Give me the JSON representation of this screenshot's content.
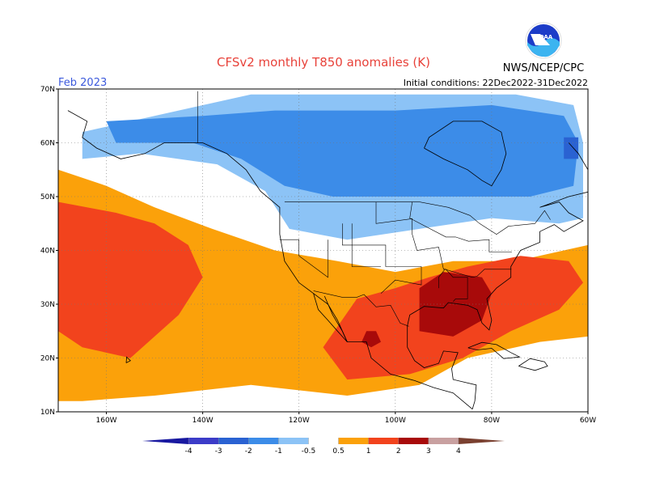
{
  "header": {
    "title": "CFSv2 monthly T850 anomalies (K)",
    "valid_month": "Feb 2023",
    "agency": "NWS/NCEP/CPC",
    "initial_conditions": "Initial conditions: 22Dec2022-31Dec2022",
    "logo_text": "NOAA",
    "title_color": "#e8423a",
    "month_color": "#3c5adc"
  },
  "map": {
    "domain": {
      "lon_min": -170,
      "lon_max": -60,
      "lat_min": 10,
      "lat_max": 70
    },
    "lat_ticks": [
      {
        "value": 70,
        "label": "70N"
      },
      {
        "value": 60,
        "label": "60N"
      },
      {
        "value": 50,
        "label": "50N"
      },
      {
        "value": 40,
        "label": "40N"
      },
      {
        "value": 30,
        "label": "30N"
      },
      {
        "value": 20,
        "label": "20N"
      },
      {
        "value": 10,
        "label": "10N"
      }
    ],
    "lon_ticks": [
      {
        "value": -160,
        "label": "160W"
      },
      {
        "value": -140,
        "label": "140W"
      },
      {
        "value": -120,
        "label": "120W"
      },
      {
        "value": -100,
        "label": "100W"
      },
      {
        "value": -80,
        "label": "80W"
      },
      {
        "value": -60,
        "label": "60W"
      }
    ],
    "gridlines": "dotted",
    "anomaly_regions": [
      {
        "name": "cold-north-canada",
        "level": "-1 to -0.5",
        "color": "#8cc3f6",
        "poly": [
          [
            -165,
            62
          ],
          [
            -150,
            65
          ],
          [
            -130,
            69
          ],
          [
            -100,
            69
          ],
          [
            -75,
            69
          ],
          [
            -63,
            67
          ],
          [
            -61,
            60
          ],
          [
            -61,
            46
          ],
          [
            -66,
            45
          ],
          [
            -80,
            46
          ],
          [
            -95,
            44
          ],
          [
            -110,
            42
          ],
          [
            -122,
            44
          ],
          [
            -127,
            51
          ],
          [
            -137,
            56
          ],
          [
            -153,
            58
          ],
          [
            -165,
            57
          ]
        ]
      },
      {
        "name": "cold-core-canada",
        "level": "-2 to -1",
        "color": "#3c8ce8",
        "poly": [
          [
            -160,
            64
          ],
          [
            -140,
            65
          ],
          [
            -125,
            66
          ],
          [
            -100,
            66
          ],
          [
            -80,
            67
          ],
          [
            -65,
            65
          ],
          [
            -62,
            60
          ],
          [
            -63,
            52
          ],
          [
            -72,
            50
          ],
          [
            -88,
            50
          ],
          [
            -100,
            50
          ],
          [
            -113,
            50
          ],
          [
            -123,
            52
          ],
          [
            -132,
            57
          ],
          [
            -142,
            60
          ],
          [
            -158,
            60
          ]
        ]
      },
      {
        "name": "cold-spot-labrador",
        "level": "-3 to -2",
        "color": "#2a62d2",
        "poly": [
          [
            -65,
            61
          ],
          [
            -62,
            61
          ],
          [
            -62,
            57
          ],
          [
            -65,
            57
          ]
        ]
      },
      {
        "name": "warm-pacific-outer",
        "level": "0.5 to 1",
        "color": "#fba10a",
        "poly": [
          [
            -170,
            55
          ],
          [
            -160,
            52
          ],
          [
            -150,
            48
          ],
          [
            -138,
            44
          ],
          [
            -125,
            40
          ],
          [
            -112,
            38
          ],
          [
            -100,
            36
          ],
          [
            -88,
            38
          ],
          [
            -75,
            38
          ],
          [
            -60,
            41
          ],
          [
            -60,
            24
          ],
          [
            -70,
            23
          ],
          [
            -85,
            20
          ],
          [
            -95,
            15
          ],
          [
            -110,
            13
          ],
          [
            -130,
            15
          ],
          [
            -150,
            13
          ],
          [
            -165,
            12
          ],
          [
            -170,
            12
          ]
        ]
      },
      {
        "name": "warm-pacific-core",
        "level": "1 to 2",
        "color": "#f2431d",
        "poly": [
          [
            -170,
            49
          ],
          [
            -158,
            47
          ],
          [
            -150,
            45
          ],
          [
            -143,
            41
          ],
          [
            -140,
            35
          ],
          [
            -145,
            28
          ],
          [
            -155,
            20
          ],
          [
            -165,
            22
          ],
          [
            -170,
            25
          ]
        ]
      },
      {
        "name": "warm-mexico-us-core",
        "level": "1 to 2",
        "color": "#f2431d",
        "poly": [
          [
            -115,
            22
          ],
          [
            -108,
            31
          ],
          [
            -100,
            33
          ],
          [
            -93,
            35
          ],
          [
            -85,
            37
          ],
          [
            -74,
            39
          ],
          [
            -64,
            38
          ],
          [
            -61,
            34
          ],
          [
            -66,
            29
          ],
          [
            -76,
            25
          ],
          [
            -86,
            20
          ],
          [
            -97,
            17
          ],
          [
            -110,
            16
          ]
        ]
      },
      {
        "name": "warm-southeast-us",
        "level": "2 to 3",
        "color": "#a80a0a",
        "poly": [
          [
            -95,
            33
          ],
          [
            -90,
            36
          ],
          [
            -82,
            35
          ],
          [
            -80,
            32
          ],
          [
            -82,
            27
          ],
          [
            -88,
            24
          ],
          [
            -95,
            25
          ]
        ]
      },
      {
        "name": "warm-spot-mexico",
        "level": "2 to 3",
        "color": "#a80a0a",
        "poly": [
          [
            -106,
            25
          ],
          [
            -104,
            25
          ],
          [
            -103,
            23
          ],
          [
            -105,
            22
          ],
          [
            -107,
            23
          ]
        ]
      }
    ],
    "land_outlines_color": "#000000",
    "states_color": "#000000"
  },
  "colorbar": {
    "segments": [
      {
        "label_left": "",
        "color": "#1818a0"
      },
      {
        "label_left": "-4",
        "color": "#3c3cc8"
      },
      {
        "label_left": "-3",
        "color": "#2a62d2"
      },
      {
        "label_left": "-2",
        "color": "#3c8ce8"
      },
      {
        "label_left": "-1",
        "color": "#8cc3f6"
      },
      {
        "label_left": "-0.5",
        "color": "#ffffff"
      },
      {
        "label_left": "0.5",
        "color": "#fba10a"
      },
      {
        "label_left": "1",
        "color": "#f2431d"
      },
      {
        "label_left": "2",
        "color": "#a80a0a"
      },
      {
        "label_left": "3",
        "color": "#c8a0a0"
      },
      {
        "label_left": "4",
        "color": "#7a4030"
      }
    ],
    "labels": [
      "-4",
      "-3",
      "-2",
      "-1",
      "-0.5",
      "0.5",
      "1",
      "2",
      "3",
      "4"
    ]
  }
}
